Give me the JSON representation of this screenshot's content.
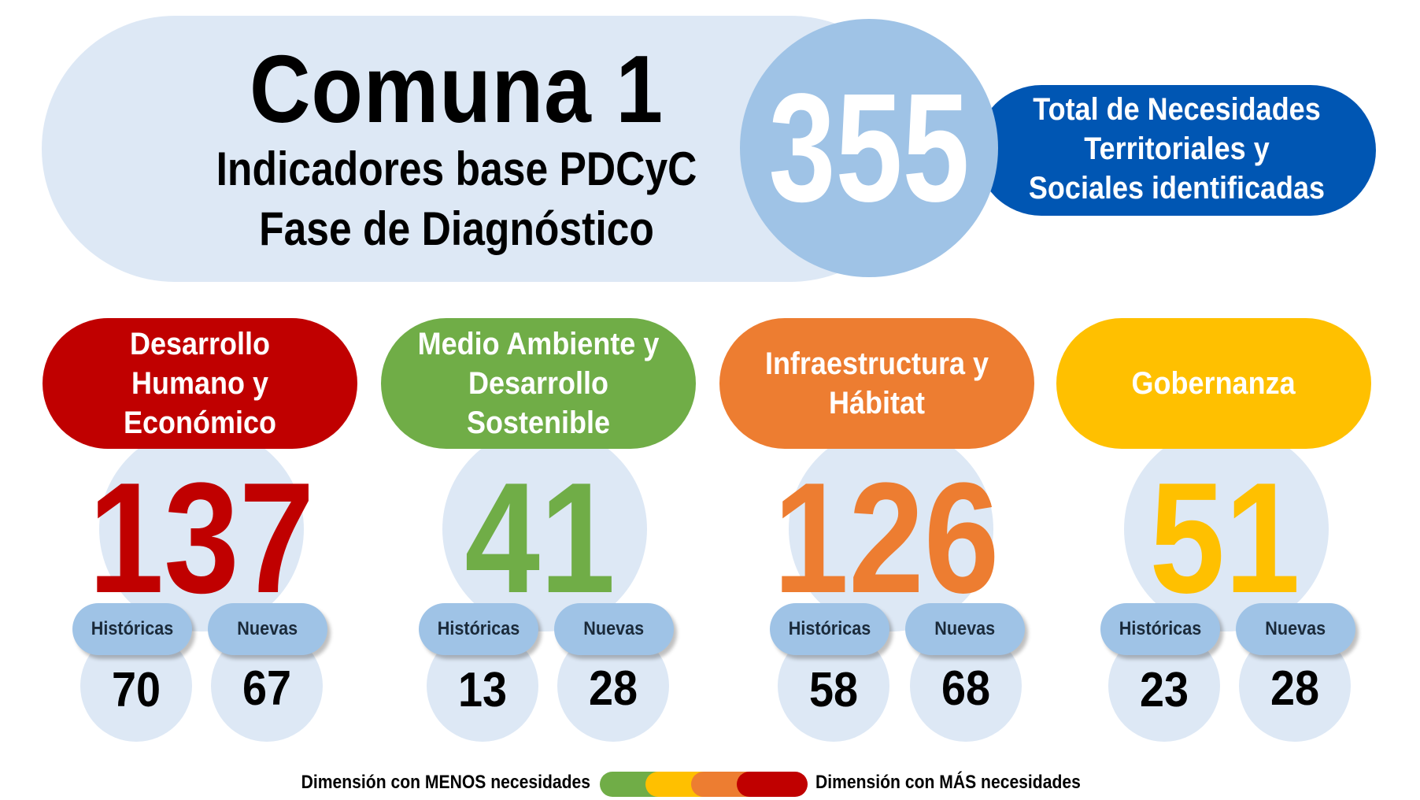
{
  "header": {
    "title": "Comuna 1",
    "subtitle_line1": "Indicadores base PDCyC",
    "subtitle_line2": "Fase de Diagnóstico"
  },
  "total": {
    "value": "355",
    "label": "Total de Necesidades Territoriales y Sociales identificadas"
  },
  "dimensions": [
    {
      "name": "Desarrollo Humano y Económico",
      "total": "137",
      "historicas_label": "Históricas",
      "historicas": "70",
      "nuevas_label": "Nuevas",
      "nuevas": "67",
      "color": "#c00000"
    },
    {
      "name": "Medio Ambiente y Desarrollo Sostenible",
      "total": "41",
      "historicas_label": "Históricas",
      "historicas": "13",
      "nuevas_label": "Nuevas",
      "nuevas": "28",
      "color": "#70ad47"
    },
    {
      "name": "Infraestructura y Hábitat",
      "total": "126",
      "historicas_label": "Históricas",
      "historicas": "58",
      "nuevas_label": "Nuevas",
      "nuevas": "68",
      "color": "#ed7d31"
    },
    {
      "name": "Gobernanza",
      "total": "51",
      "historicas_label": "Históricas",
      "historicas": "23",
      "nuevas_label": "Nuevas",
      "nuevas": "28",
      "color": "#ffc000"
    }
  ],
  "legend": {
    "less_label": "Dimensión con MENOS necesidades",
    "more_label": "Dimensión con MÁS necesidades",
    "scale_colors": [
      "#70ad47",
      "#ffc000",
      "#ed7d31",
      "#c00000"
    ]
  }
}
